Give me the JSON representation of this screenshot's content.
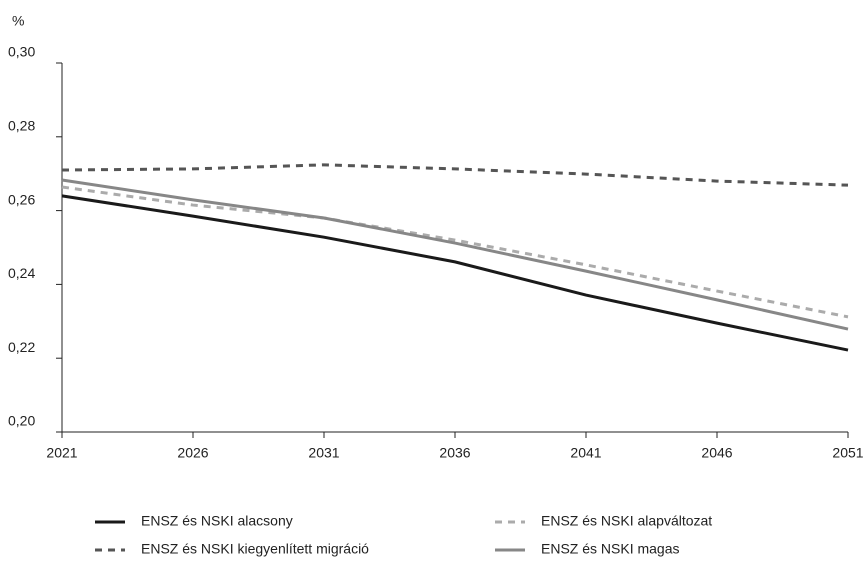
{
  "chart_data": {
    "type": "line",
    "ylabel": "%",
    "x": [
      2021,
      2026,
      2031,
      2036,
      2041,
      2046,
      2051
    ],
    "xlim": [
      2021,
      2051
    ],
    "xticks": [
      2021,
      2026,
      2031,
      2036,
      2041,
      2046,
      2051
    ],
    "ylim": [
      0.2,
      0.3
    ],
    "yticks": [
      {
        "value": 0.2,
        "label": "0,20"
      },
      {
        "value": 0.22,
        "label": "0,22"
      },
      {
        "value": 0.24,
        "label": "0,24"
      },
      {
        "value": 0.26,
        "label": "0,26"
      },
      {
        "value": 0.28,
        "label": "0,28"
      },
      {
        "value": 0.3,
        "label": "0,30"
      }
    ],
    "grid": false,
    "series": [
      {
        "name": "ENSZ és NSKI alacsony",
        "color": "#1a1a1a",
        "dashed": false,
        "values": [
          0.264,
          0.2585,
          0.2528,
          0.2461,
          0.2371,
          0.2295,
          0.2222
        ]
      },
      {
        "name": "ENSZ és NSKI alapváltozat",
        "color": "#ababab",
        "dashed": true,
        "values": [
          0.2664,
          0.2615,
          0.258,
          0.252,
          0.2453,
          0.2382,
          0.2312
        ]
      },
      {
        "name": "ENSZ és NSKI kiegyenlített migráció",
        "color": "#555555",
        "dashed": true,
        "values": [
          0.271,
          0.2713,
          0.2724,
          0.2713,
          0.2699,
          0.268,
          0.2669
        ]
      },
      {
        "name": "ENSZ és NSKI magas",
        "color": "#878787",
        "dashed": false,
        "values": [
          0.2683,
          0.2629,
          0.258,
          0.2512,
          0.2436,
          0.2358,
          0.2279
        ]
      }
    ]
  }
}
